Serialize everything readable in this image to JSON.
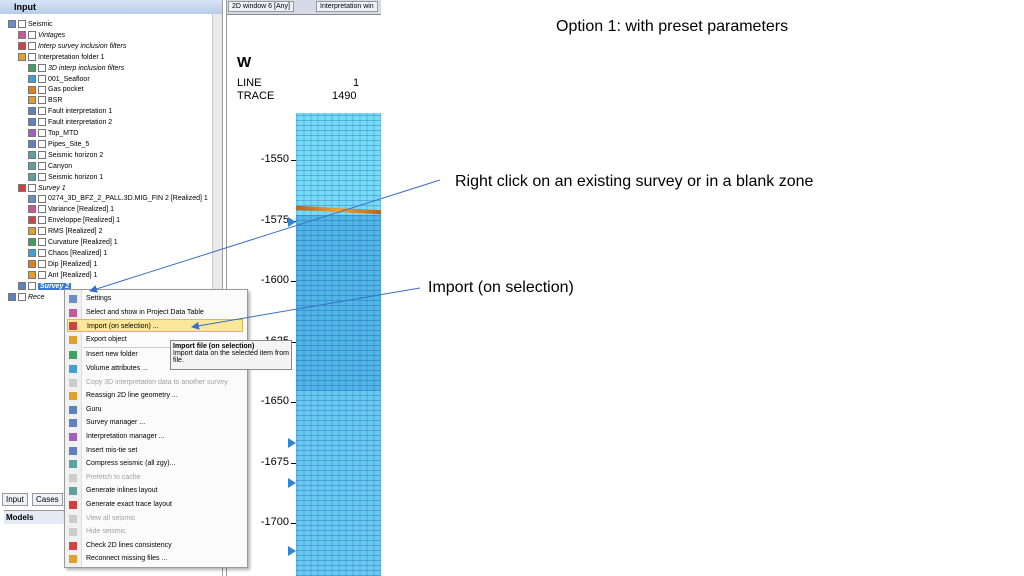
{
  "input_panel": {
    "title": "Input",
    "tree": [
      {
        "label": "Seismic"
      },
      {
        "label": "Vintages",
        "italic": true
      },
      {
        "label": "Interp survey inclusion filters",
        "italic": true
      },
      {
        "label": "Interpretation folder 1"
      },
      {
        "label": "3D interp inclusion filters",
        "italic": true
      },
      {
        "label": "001_Seafloor"
      },
      {
        "label": "Gas pocket"
      },
      {
        "label": "BSR"
      },
      {
        "label": "Fault interpretation 1"
      },
      {
        "label": "Fault interpretation 2"
      },
      {
        "label": "Top_MTD"
      },
      {
        "label": "Pipes_Site_5"
      },
      {
        "label": "Seismic horizon 2"
      },
      {
        "label": "Canyon"
      },
      {
        "label": "Seismic horizon 1"
      },
      {
        "label": "Survey 1",
        "italic": true
      },
      {
        "label": "0274_3D_BFZ_2_PALL.3D.MIG_FIN 2 [Realized] 1"
      },
      {
        "label": "Variance [Realized] 1"
      },
      {
        "label": "Enveloppe [Realized] 1"
      },
      {
        "label": "RMS [Realized] 2"
      },
      {
        "label": "Curvature [Realized] 1"
      },
      {
        "label": "Chaos [Realized] 1"
      },
      {
        "label": "Dip [Realized] 1"
      },
      {
        "label": "Ant [Realized] 1"
      },
      {
        "label": "Survey 2",
        "italic": true,
        "selected": true
      },
      {
        "label": "Rece",
        "italic": true
      }
    ],
    "bottom_tabs": [
      "Input",
      "Cases"
    ],
    "models_title": "Models"
  },
  "window_tabs": [
    "2D window 6 [Any]",
    "Interpretation win"
  ],
  "seismic_view": {
    "direction": "W",
    "header_labels": [
      "LINE",
      "TRACE"
    ],
    "header_values": [
      "1",
      "1490"
    ],
    "depth_labels": [
      "-1550",
      "-1575",
      "-1600",
      "-1625",
      "-1650",
      "-1675",
      "-1700"
    ]
  },
  "context_menu": {
    "items": [
      {
        "label": "Settings"
      },
      {
        "label": "Select and show in Project Data Table"
      },
      {
        "label": "Import (on selection) ...",
        "highlighted": true
      },
      {
        "label": "Export object"
      },
      {
        "label": "Insert new folder"
      },
      {
        "label": "Volume attributes ..."
      },
      {
        "label": "Copy 3D interpretation data to another survey",
        "disabled": true
      },
      {
        "label": "Reassign 2D line geometry ..."
      },
      {
        "label": "Guru"
      },
      {
        "label": "Survey manager ..."
      },
      {
        "label": "Interpretation manager ..."
      },
      {
        "label": "Insert mis-tie set"
      },
      {
        "label": "Compress seismic (all zgy)..."
      },
      {
        "label": "Prefetch to cache",
        "disabled": true
      },
      {
        "label": "Generate inlines layout"
      },
      {
        "label": "Generate exact trace layout"
      },
      {
        "label": "View all seismic",
        "disabled": true
      },
      {
        "label": "Hide seismic",
        "disabled": true
      },
      {
        "label": "Check 2D lines consistency"
      },
      {
        "label": "Reconnect missing files ..."
      }
    ]
  },
  "tooltip": {
    "title": "Import file (on selection)",
    "text": "Import data on the selected item from file."
  },
  "annotations": {
    "heading": "Option 1: with preset parameters",
    "right_click_note": "Right click on an existing survey or in a blank zone",
    "import_note": "Import (on selection)"
  }
}
